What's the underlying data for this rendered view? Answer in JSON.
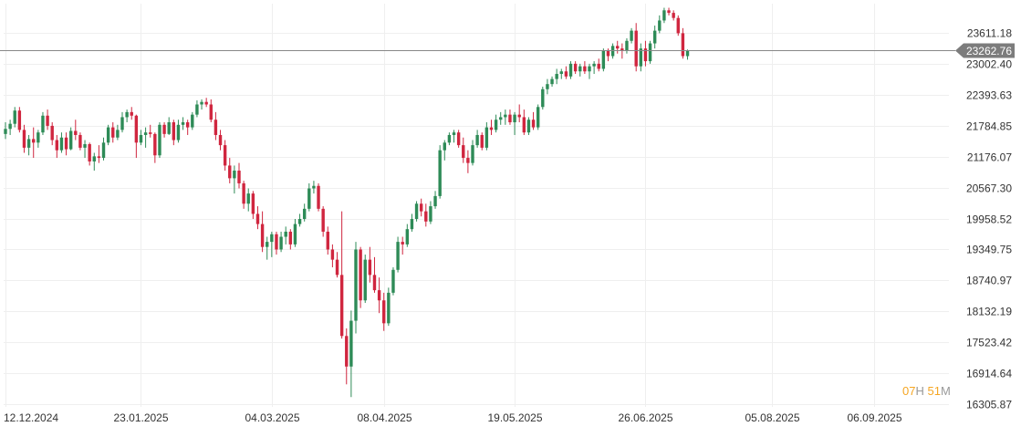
{
  "chart_data": {
    "type": "candlestick",
    "y_ticks": [
      "23611.18",
      "23002.40",
      "22393.63",
      "21784.85",
      "21176.07",
      "20567.30",
      "19958.52",
      "19349.75",
      "18740.97",
      "18132.19",
      "17523.42",
      "16914.64",
      "16305.87"
    ],
    "y_tick_values": [
      23611.18,
      23002.4,
      22393.63,
      21784.85,
      21176.07,
      20567.3,
      19958.52,
      19349.75,
      18740.97,
      18132.19,
      17523.42,
      16914.64,
      16305.87
    ],
    "ylim": [
      16257,
      24181
    ],
    "x_ticks": [
      {
        "label": "12.12.2024",
        "index": 0
      },
      {
        "label": "23.01.2025",
        "index": 29
      },
      {
        "label": "04.03.2025",
        "index": 57
      },
      {
        "label": "08.04.2025",
        "index": 81
      },
      {
        "label": "19.05.2025",
        "index": 109
      },
      {
        "label": "26.06.2025",
        "index": 137
      },
      {
        "label": "05.08.2025",
        "index": 164
      },
      {
        "label": "06.09.2025",
        "index": 186
      }
    ],
    "current_price": {
      "value": 23262.76,
      "label": "23262.76"
    },
    "up_color": "#2e8b57",
    "down_color": "#d0263f",
    "ohlc": [
      [
        21620,
        21850,
        21520,
        21720
      ],
      [
        21720,
        21900,
        21600,
        21820
      ],
      [
        21820,
        22150,
        21750,
        22080
      ],
      [
        22080,
        22150,
        21650,
        21700
      ],
      [
        21700,
        21800,
        21250,
        21350
      ],
      [
        21350,
        21600,
        21200,
        21520
      ],
      [
        21520,
        21750,
        21150,
        21450
      ],
      [
        21450,
        21700,
        21350,
        21650
      ],
      [
        21650,
        22050,
        21600,
        21980
      ],
      [
        21980,
        22100,
        21700,
        21780
      ],
      [
        21780,
        21850,
        21400,
        21500
      ],
      [
        21500,
        21600,
        21150,
        21300
      ],
      [
        21300,
        21650,
        21250,
        21550
      ],
      [
        21550,
        21650,
        21200,
        21320
      ],
      [
        21320,
        21750,
        21300,
        21680
      ],
      [
        21680,
        21900,
        21500,
        21600
      ],
      [
        21600,
        21650,
        21300,
        21350
      ],
      [
        21350,
        21500,
        21150,
        21420
      ],
      [
        21420,
        21450,
        21000,
        21080
      ],
      [
        21080,
        21250,
        20900,
        21180
      ],
      [
        21180,
        21400,
        21050,
        21150
      ],
      [
        21150,
        21550,
        21100,
        21450
      ],
      [
        21450,
        21800,
        21400,
        21750
      ],
      [
        21750,
        21850,
        21450,
        21550
      ],
      [
        21550,
        21800,
        21500,
        21700
      ],
      [
        21700,
        22050,
        21650,
        21950
      ],
      [
        21950,
        22100,
        21850,
        22050
      ],
      [
        22050,
        22150,
        21900,
        21980
      ],
      [
        21980,
        22000,
        21150,
        21450
      ],
      [
        21450,
        21700,
        21400,
        21600
      ],
      [
        21600,
        21750,
        21350,
        21650
      ],
      [
        21650,
        21800,
        21550,
        21620
      ],
      [
        21620,
        21650,
        21050,
        21200
      ],
      [
        21200,
        21850,
        21150,
        21800
      ],
      [
        21800,
        21850,
        21550,
        21620
      ],
      [
        21620,
        21950,
        21600,
        21850
      ],
      [
        21850,
        21900,
        21400,
        21500
      ],
      [
        21500,
        21900,
        21450,
        21800
      ],
      [
        21800,
        21950,
        21700,
        21850
      ],
      [
        21850,
        21900,
        21600,
        21750
      ],
      [
        21750,
        22050,
        21700,
        22000
      ],
      [
        22000,
        22280,
        21950,
        22200
      ],
      [
        22200,
        22300,
        22100,
        22250
      ],
      [
        22250,
        22330,
        22150,
        22200
      ],
      [
        22200,
        22300,
        21850,
        21900
      ],
      [
        21900,
        22050,
        21500,
        21600
      ],
      [
        21600,
        21700,
        21300,
        21400
      ],
      [
        21400,
        21500,
        20900,
        21000
      ],
      [
        21000,
        21150,
        20650,
        20750
      ],
      [
        20750,
        21000,
        20450,
        20900
      ],
      [
        20900,
        21050,
        20550,
        20650
      ],
      [
        20650,
        20700,
        20150,
        20250
      ],
      [
        20250,
        20550,
        20100,
        20450
      ],
      [
        20450,
        20500,
        19950,
        20050
      ],
      [
        20050,
        20200,
        19750,
        19850
      ],
      [
        19850,
        20100,
        19300,
        19400
      ],
      [
        19400,
        19600,
        19150,
        19500
      ],
      [
        19500,
        19700,
        19200,
        19650
      ],
      [
        19650,
        19700,
        19250,
        19350
      ],
      [
        19350,
        19700,
        19300,
        19600
      ],
      [
        19600,
        19800,
        19450,
        19700
      ],
      [
        19700,
        19750,
        19350,
        19450
      ],
      [
        19450,
        19950,
        19400,
        19850
      ],
      [
        19850,
        20050,
        19800,
        19950
      ],
      [
        19950,
        20250,
        19900,
        20150
      ],
      [
        20150,
        20650,
        20100,
        20550
      ],
      [
        20550,
        20700,
        20450,
        20600
      ],
      [
        20600,
        20650,
        20100,
        20150
      ],
      [
        20150,
        20200,
        19600,
        19700
      ],
      [
        19700,
        19800,
        19250,
        19350
      ],
      [
        19350,
        19450,
        19000,
        19150
      ],
      [
        19150,
        19300,
        18800,
        18850
      ],
      [
        18850,
        20100,
        17600,
        17650
      ],
      [
        17650,
        17800,
        16700,
        17050
      ],
      [
        17050,
        18150,
        16450,
        17950
      ],
      [
        17950,
        19500,
        17700,
        19350
      ],
      [
        19350,
        19400,
        18200,
        18350
      ],
      [
        18350,
        19250,
        18300,
        19150
      ],
      [
        19150,
        19400,
        18700,
        18850
      ],
      [
        18850,
        19200,
        18500,
        18550
      ],
      [
        18550,
        18800,
        18100,
        18350
      ],
      [
        18350,
        18500,
        17750,
        17900
      ],
      [
        17900,
        18600,
        17850,
        18500
      ],
      [
        18500,
        19000,
        18450,
        18950
      ],
      [
        18950,
        19600,
        18900,
        19500
      ],
      [
        19500,
        19600,
        19250,
        19450
      ],
      [
        19450,
        19850,
        19400,
        19750
      ],
      [
        19750,
        20050,
        19700,
        19950
      ],
      [
        19950,
        20300,
        19900,
        20250
      ],
      [
        20250,
        20350,
        20000,
        20100
      ],
      [
        20100,
        20250,
        19800,
        19900
      ],
      [
        19900,
        20300,
        19850,
        20200
      ],
      [
        20200,
        20500,
        20150,
        20400
      ],
      [
        20400,
        21400,
        20350,
        21300
      ],
      [
        21300,
        21500,
        21100,
        21450
      ],
      [
        21450,
        21650,
        21400,
        21600
      ],
      [
        21600,
        21700,
        21450,
        21650
      ],
      [
        21650,
        21700,
        21350,
        21400
      ],
      [
        21400,
        21550,
        21050,
        21150
      ],
      [
        21150,
        21300,
        20850,
        21050
      ],
      [
        21050,
        21500,
        21000,
        21400
      ],
      [
        21400,
        21700,
        21350,
        21600
      ],
      [
        21600,
        21650,
        21300,
        21350
      ],
      [
        21350,
        21850,
        21300,
        21750
      ],
      [
        21750,
        21900,
        21600,
        21700
      ],
      [
        21700,
        22000,
        21650,
        21900
      ],
      [
        21900,
        22050,
        21800,
        21950
      ],
      [
        21950,
        22100,
        21800,
        22000
      ],
      [
        22000,
        22100,
        21800,
        21850
      ],
      [
        21850,
        22050,
        21600,
        22000
      ],
      [
        22000,
        22200,
        21850,
        21950
      ],
      [
        21950,
        22100,
        21600,
        21650
      ],
      [
        21650,
        21950,
        21600,
        21900
      ],
      [
        21900,
        22050,
        21700,
        21750
      ],
      [
        21750,
        22200,
        21700,
        22150
      ],
      [
        22150,
        22550,
        22100,
        22500
      ],
      [
        22500,
        22700,
        22400,
        22600
      ],
      [
        22600,
        22750,
        22550,
        22700
      ],
      [
        22700,
        22900,
        22600,
        22800
      ],
      [
        22800,
        22900,
        22700,
        22850
      ],
      [
        22850,
        22950,
        22700,
        22750
      ],
      [
        22750,
        23050,
        22700,
        23000
      ],
      [
        23000,
        23050,
        22800,
        22850
      ],
      [
        22850,
        23000,
        22750,
        22950
      ],
      [
        22950,
        23050,
        22800,
        22850
      ],
      [
        22850,
        23000,
        22700,
        22950
      ],
      [
        22950,
        23050,
        22800,
        23000
      ],
      [
        23000,
        23100,
        22850,
        22900
      ],
      [
        22900,
        23300,
        22850,
        23250
      ],
      [
        23250,
        23300,
        23050,
        23150
      ],
      [
        23150,
        23400,
        23100,
        23350
      ],
      [
        23350,
        23450,
        23200,
        23300
      ],
      [
        23300,
        23400,
        23100,
        23250
      ],
      [
        23250,
        23500,
        23200,
        23450
      ],
      [
        23450,
        23700,
        23400,
        23650
      ],
      [
        23650,
        23800,
        22850,
        22950
      ],
      [
        22950,
        23400,
        22850,
        23300
      ],
      [
        23300,
        23450,
        22950,
        23050
      ],
      [
        23050,
        23450,
        23000,
        23400
      ],
      [
        23400,
        23750,
        23300,
        23650
      ],
      [
        23650,
        23950,
        23600,
        23850
      ],
      [
        23850,
        24100,
        23800,
        24050
      ],
      [
        24050,
        24100,
        23950,
        24000
      ],
      [
        24000,
        24050,
        23850,
        23900
      ],
      [
        23900,
        23950,
        23550,
        23600
      ],
      [
        23600,
        23700,
        23100,
        23150
      ],
      [
        23150,
        23280,
        23080,
        23262.76
      ]
    ]
  },
  "countdown": {
    "hours": "07",
    "h_unit": "H",
    "minutes": "51",
    "m_unit": "M"
  }
}
